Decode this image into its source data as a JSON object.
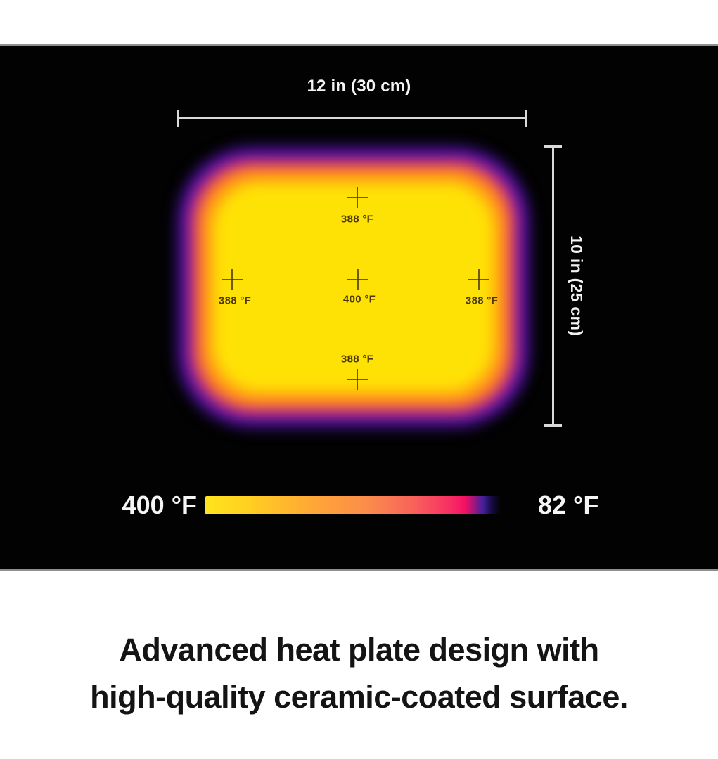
{
  "thermal_panel": {
    "width_dimension": "12 in (30 cm)",
    "height_dimension": "10 in (25 cm)",
    "markers": [
      {
        "position": "top",
        "temp": "388 °F"
      },
      {
        "position": "left",
        "temp": "388 °F"
      },
      {
        "position": "center",
        "temp": "400 °F"
      },
      {
        "position": "right",
        "temp": "388 °F"
      },
      {
        "position": "bottom",
        "temp": "388 °F"
      }
    ],
    "scale": {
      "hot_label": "400 °F",
      "cold_label": "82 °F"
    },
    "colors": {
      "plate_core_yellow": "#ffe205",
      "plate_orange": "#ff7d23",
      "plate_pink": "#d23a78",
      "plate_violet": "#46109e",
      "plate_indigo": "#22094c",
      "panel_background": "#020202",
      "dimension_line": "#d9d9d9"
    }
  },
  "chart_data": {
    "type": "heatmap",
    "unit": "°F",
    "points": [
      {
        "location": "top-center",
        "value": 388
      },
      {
        "location": "mid-left",
        "value": 388
      },
      {
        "location": "center",
        "value": 400
      },
      {
        "location": "mid-right",
        "value": 388
      },
      {
        "location": "bottom-center",
        "value": 388
      }
    ],
    "colorbar": {
      "orientation": "horizontal",
      "hot_side": "left",
      "max": 400,
      "min": 82,
      "max_label": "400 °F",
      "min_label": "82 °F",
      "colormap": "plasma-like (yellow hot to indigo cold)"
    },
    "plate_width_label": "12 in (30 cm)",
    "plate_height_label": "10 in (25 cm)"
  },
  "caption": {
    "line1": "Advanced heat plate design with",
    "line2": "high-quality ceramic-coated surface."
  }
}
